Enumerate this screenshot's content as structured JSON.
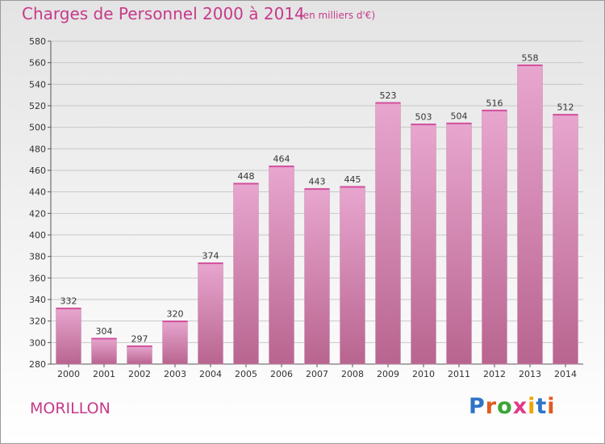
{
  "title": "Charges de Personnel 2000 à 2014",
  "subtitle": "(en milliers d'€)",
  "commune": "MORILLON",
  "logo": {
    "letters": [
      {
        "ch": "P",
        "color": "#2e74c8"
      },
      {
        "ch": "r",
        "color": "#e05c20"
      },
      {
        "ch": "o",
        "color": "#3aa535"
      },
      {
        "ch": "x",
        "color": "#e23a8a"
      },
      {
        "ch": "i",
        "color": "#f0a400"
      },
      {
        "ch": "t",
        "color": "#2e74c8"
      },
      {
        "ch": "i",
        "color": "#e05c20"
      }
    ]
  },
  "colors": {
    "accent": "#c63a8a",
    "bar_top": "#e8a6cf",
    "bar_bottom": "#b8658f"
  },
  "chart_data": {
    "type": "bar",
    "categories": [
      "2000",
      "2001",
      "2002",
      "2003",
      "2004",
      "2005",
      "2006",
      "2007",
      "2008",
      "2009",
      "2010",
      "2011",
      "2012",
      "2013",
      "2014"
    ],
    "values": [
      332,
      304,
      297,
      320,
      374,
      448,
      464,
      443,
      445,
      523,
      503,
      504,
      516,
      558,
      512
    ],
    "ylim": [
      280,
      580
    ],
    "yticks": [
      280,
      300,
      320,
      340,
      360,
      380,
      400,
      420,
      440,
      460,
      480,
      500,
      520,
      540,
      560,
      580
    ],
    "grid": true,
    "data_labels": true
  }
}
